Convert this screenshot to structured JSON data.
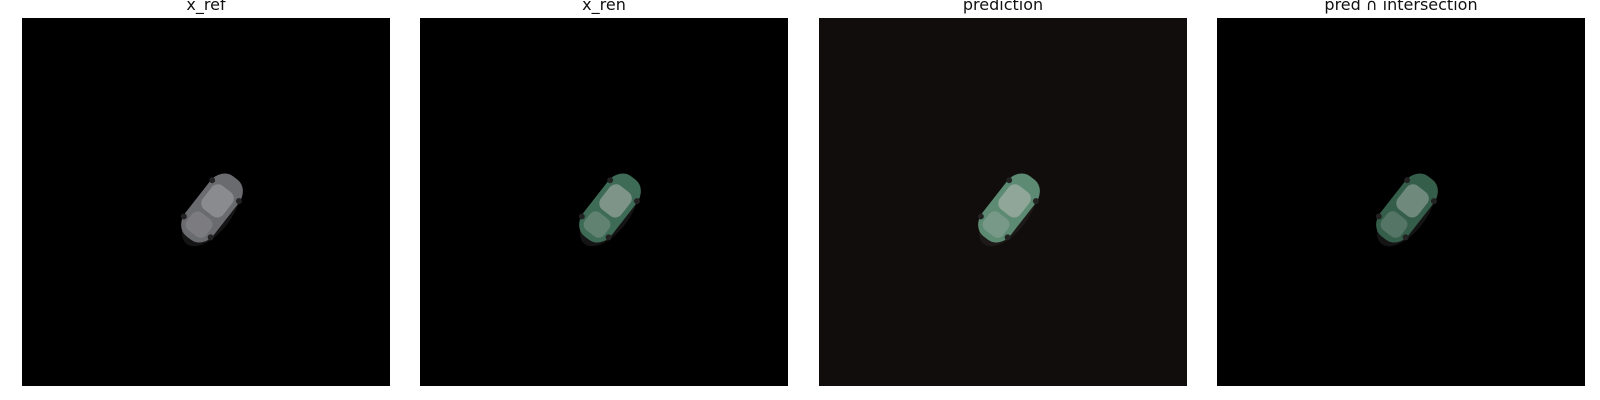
{
  "panels": [
    {
      "title": "x_ref",
      "background": "#000000",
      "body_color": "#6a6b6e",
      "window_color": "#8a8b8f"
    },
    {
      "title": "x_ren",
      "background": "#000000",
      "body_color": "#3d6b55",
      "window_color": "#7f9488"
    },
    {
      "title": "prediction",
      "background": "#100d0c",
      "body_color": "#5c8a72",
      "window_color": "#8fa699"
    },
    {
      "title": "pred ∩ intersection",
      "background": "#000000",
      "body_color": "#355e4a",
      "window_color": "#6f8a7d"
    }
  ]
}
